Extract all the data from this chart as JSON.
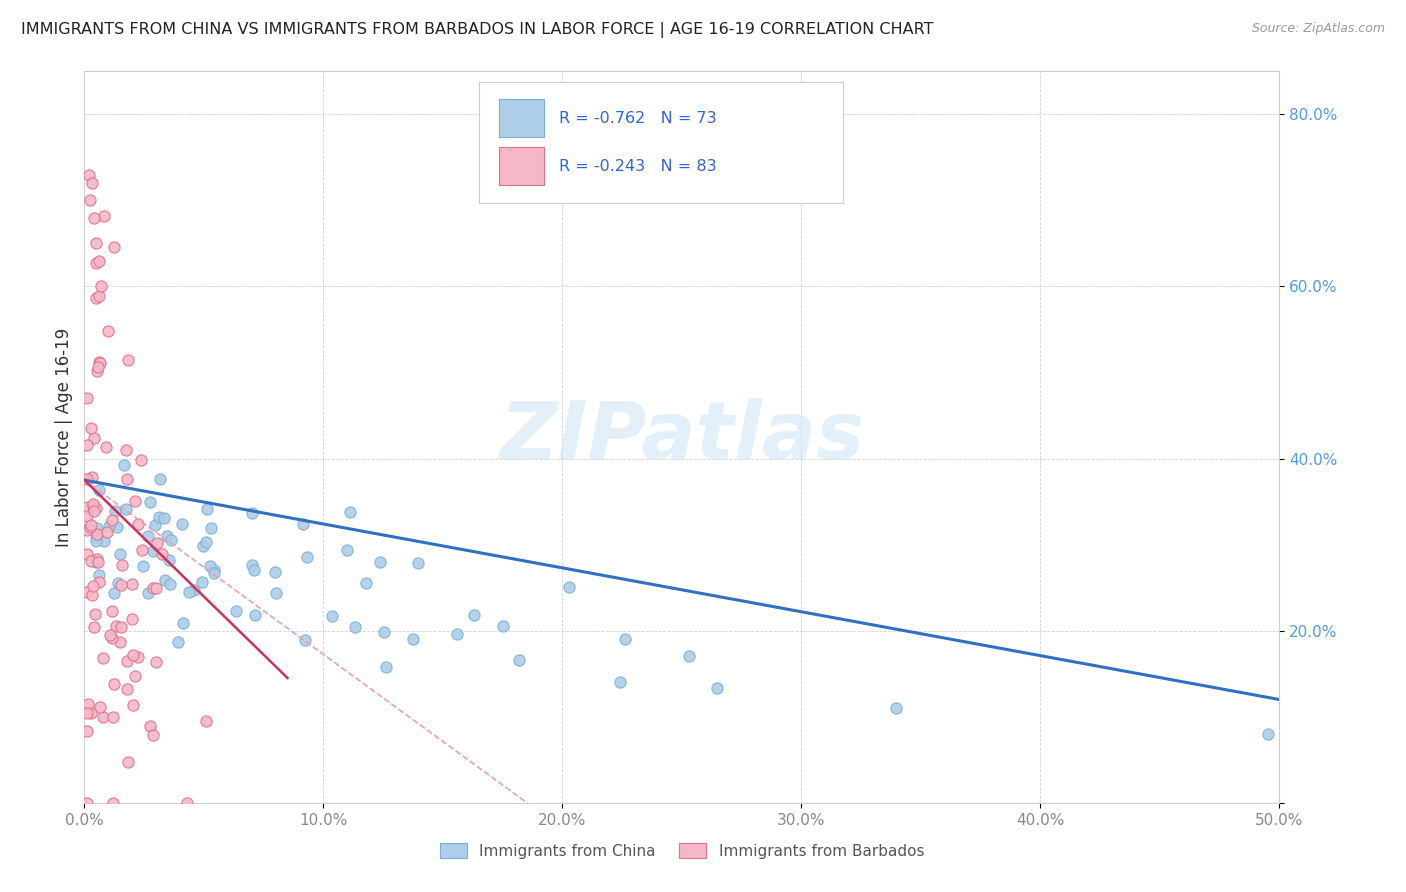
{
  "title": "IMMIGRANTS FROM CHINA VS IMMIGRANTS FROM BARBADOS IN LABOR FORCE | AGE 16-19 CORRELATION CHART",
  "source": "Source: ZipAtlas.com",
  "ylabel": "In Labor Force | Age 16-19",
  "xlim": [
    0.0,
    0.5
  ],
  "ylim": [
    0.0,
    0.85
  ],
  "xticks": [
    0.0,
    0.1,
    0.2,
    0.3,
    0.4,
    0.5
  ],
  "xtick_labels": [
    "0.0%",
    "10.0%",
    "20.0%",
    "30.0%",
    "40.0%",
    "50.0%"
  ],
  "yticks": [
    0.0,
    0.2,
    0.4,
    0.6,
    0.8
  ],
  "ytick_labels": [
    "",
    "20.0%",
    "40.0%",
    "60.0%",
    "80.0%"
  ],
  "china_color": "#aecde8",
  "china_edge": "#7aafd4",
  "barbados_color": "#f4b8c8",
  "barbados_edge": "#e0708a",
  "china_line_color": "#3070c0",
  "barbados_line_color": "#d03060",
  "barbados_dash_color": "#e8a0b0",
  "R_china": -0.762,
  "N_china": 73,
  "R_barbados": -0.243,
  "N_barbados": 83,
  "watermark": "ZIPatlas",
  "legend_china": "Immigrants from China",
  "legend_barbados": "Immigrants from Barbados",
  "tick_color_x": "#888888",
  "tick_color_y": "#5599dd",
  "title_fontsize": 11.5,
  "source_fontsize": 9,
  "axis_label_fontsize": 11,
  "legend_fontsize": 11
}
